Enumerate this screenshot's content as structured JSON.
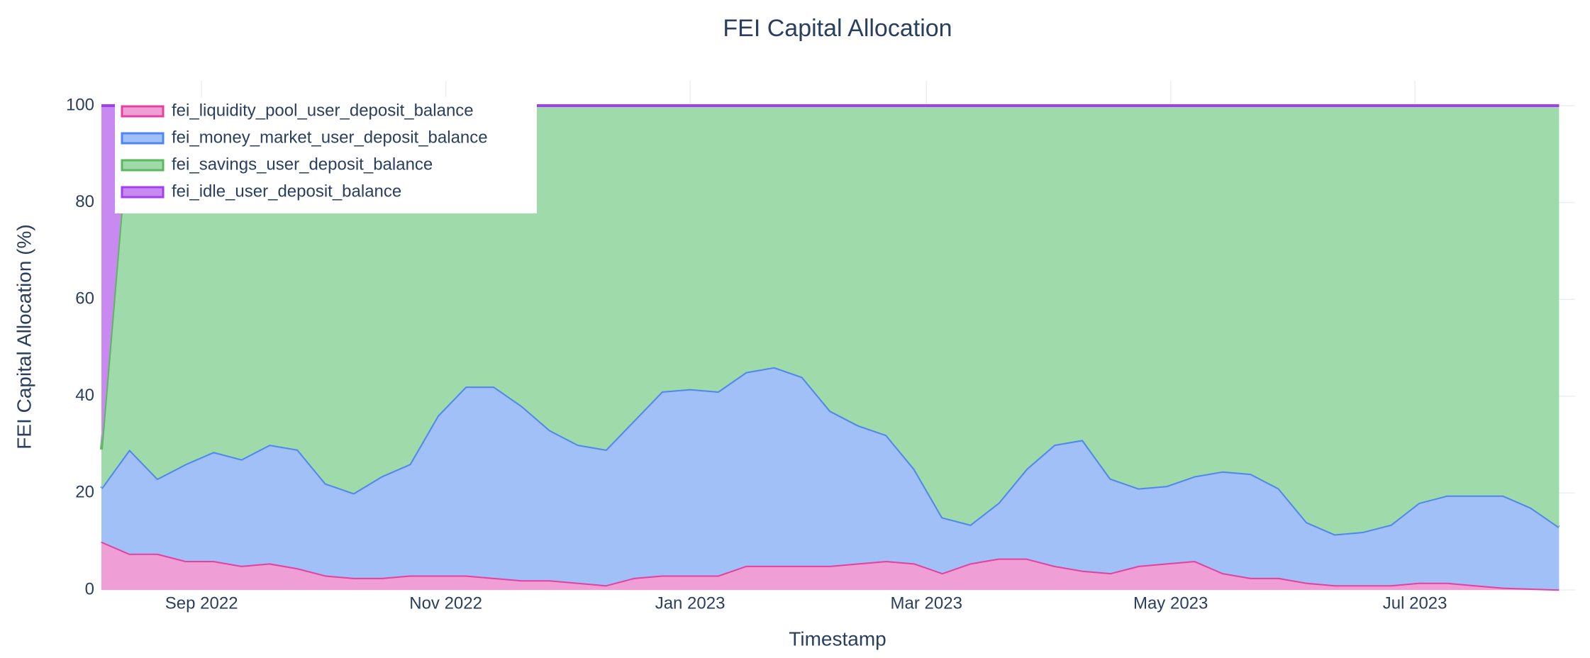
{
  "chart_data": {
    "type": "stacked_area",
    "title": "FEI Capital Allocation",
    "x_label": "Timestamp",
    "y_label": "FEI Capital Allocation (%)",
    "x": [
      "2022-08-07",
      "2022-08-14",
      "2022-08-21",
      "2022-08-28",
      "2022-09-04",
      "2022-09-11",
      "2022-09-18",
      "2022-09-25",
      "2022-10-02",
      "2022-10-09",
      "2022-10-16",
      "2022-10-23",
      "2022-10-30",
      "2022-11-06",
      "2022-11-13",
      "2022-11-20",
      "2022-11-27",
      "2022-12-04",
      "2022-12-11",
      "2022-12-18",
      "2022-12-25",
      "2023-01-01",
      "2023-01-08",
      "2023-01-15",
      "2023-01-22",
      "2023-01-29",
      "2023-02-05",
      "2023-02-12",
      "2023-02-19",
      "2023-02-26",
      "2023-03-05",
      "2023-03-12",
      "2023-03-19",
      "2023-03-26",
      "2023-04-02",
      "2023-04-09",
      "2023-04-16",
      "2023-04-23",
      "2023-04-30",
      "2023-05-07",
      "2023-05-14",
      "2023-05-21",
      "2023-05-28",
      "2023-06-04",
      "2023-06-11",
      "2023-06-18",
      "2023-06-25",
      "2023-07-02",
      "2023-07-09",
      "2023-07-16",
      "2023-07-23",
      "2023-07-30",
      "2023-08-06"
    ],
    "xlim": [
      "2022-08-07",
      "2023-08-10"
    ],
    "xticks": [
      {
        "value": "2022-09-01",
        "label": "Sep 2022"
      },
      {
        "value": "2022-11-01",
        "label": "Nov 2022"
      },
      {
        "value": "2023-01-01",
        "label": "Jan 2023"
      },
      {
        "value": "2023-03-01",
        "label": "Mar 2023"
      },
      {
        "value": "2023-05-01",
        "label": "May 2023"
      },
      {
        "value": "2023-07-01",
        "label": "Jul 2023"
      }
    ],
    "ylim": [
      0,
      100
    ],
    "yticks": [
      0,
      20,
      40,
      60,
      80,
      100
    ],
    "grid": true,
    "legend_position": "top-left",
    "series": [
      {
        "name": "fei_liquidity_pool_user_deposit_balance",
        "color": "#e6409f",
        "fill": "#f09fd6",
        "values": [
          10,
          7.5,
          7.5,
          6,
          6,
          5,
          5.5,
          4.5,
          3,
          2.5,
          2.5,
          3,
          3,
          3,
          2.5,
          2,
          2,
          1.5,
          1,
          2.5,
          3,
          3,
          3,
          5,
          5,
          5,
          5,
          5.5,
          6,
          5.5,
          3.5,
          5.5,
          6.5,
          6.5,
          5,
          4,
          3.5,
          5,
          5.5,
          6,
          3.5,
          2.5,
          2.5,
          1.5,
          1,
          1,
          1,
          1.5,
          1.5,
          1,
          0.5,
          0.3,
          0.1
        ]
      },
      {
        "name": "fei_money_market_user_deposit_balance",
        "color": "#4f86f0",
        "fill": "#a0c0f7",
        "values": [
          11,
          21.5,
          15.5,
          20,
          22.5,
          22,
          24.5,
          24.5,
          19,
          17.5,
          21,
          23,
          33,
          39,
          39.5,
          36,
          31,
          28.5,
          28,
          32.5,
          38,
          38.5,
          38,
          40,
          41,
          39,
          32,
          28.5,
          26,
          19.5,
          11.5,
          8,
          11.5,
          18.5,
          25,
          27,
          19.5,
          16,
          16,
          17.5,
          21,
          21.5,
          18.5,
          12.5,
          10.5,
          11,
          12.5,
          16.5,
          18,
          18.5,
          19,
          16.7,
          12.9
        ]
      },
      {
        "name": "fei_savings_user_deposit_balance",
        "color": "#5cb85c",
        "fill": "#9fdaab",
        "values": [
          8,
          69,
          77,
          74,
          71.5,
          73,
          70,
          71,
          78,
          80,
          76.5,
          74,
          64,
          58,
          58,
          62,
          67,
          70,
          71,
          65,
          59,
          58.5,
          59,
          55,
          54,
          56,
          63,
          66,
          68,
          75,
          85,
          86.5,
          82,
          75,
          70,
          69,
          77,
          79,
          78.5,
          76.5,
          75.5,
          76,
          79,
          86,
          88.5,
          88,
          86.5,
          82,
          80.5,
          80.5,
          80.5,
          83,
          87
        ]
      },
      {
        "name": "fei_idle_user_deposit_balance",
        "color": "#a040f0",
        "fill": "#c88af0",
        "values": [
          71,
          2,
          0,
          0,
          0,
          0,
          0,
          0,
          0,
          0,
          0,
          0,
          0,
          0,
          0,
          0,
          0,
          0,
          0,
          0,
          0,
          0,
          0,
          0,
          0,
          0,
          0,
          0,
          0,
          0,
          0,
          0,
          0,
          0,
          0,
          0,
          0,
          0,
          0,
          0,
          0,
          0,
          0,
          0,
          0,
          0,
          0,
          0,
          0,
          0,
          0,
          0,
          0
        ]
      }
    ]
  }
}
